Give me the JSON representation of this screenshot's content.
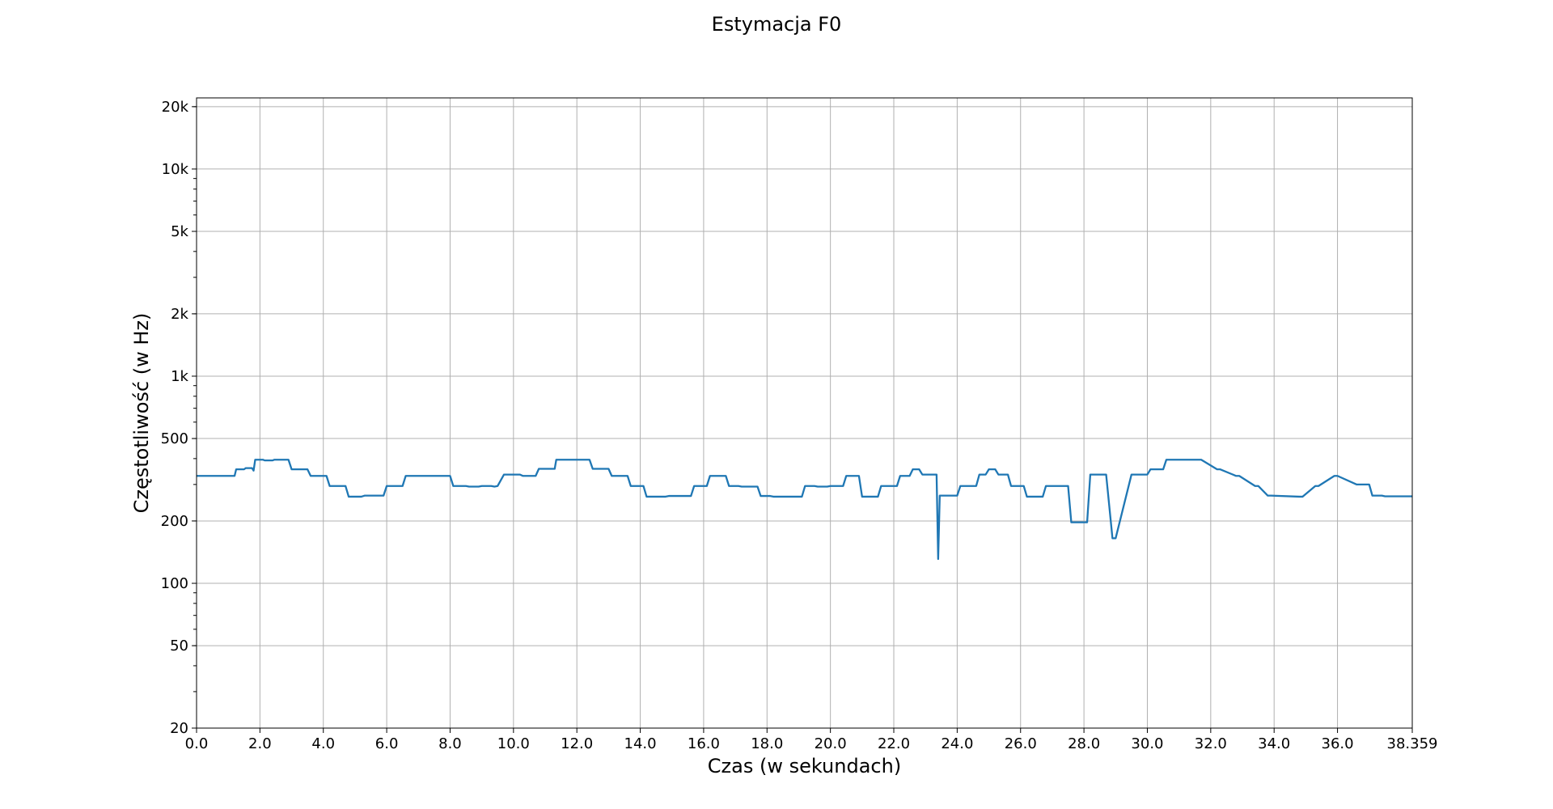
{
  "chart_data": {
    "type": "line",
    "title": "Estymacja F0",
    "xlabel": "Czas (w sekundach)",
    "ylabel": "Częstotliwość (w Hz)",
    "xlim": [
      0,
      38.359
    ],
    "ylim": [
      20,
      22050
    ],
    "yscale": "log",
    "grid": true,
    "line_color": "#1f77b4",
    "xticks": [
      "0.0",
      "2.0",
      "4.0",
      "6.0",
      "8.0",
      "10.0",
      "12.0",
      "14.0",
      "16.0",
      "18.0",
      "20.0",
      "22.0",
      "24.0",
      "26.0",
      "28.0",
      "30.0",
      "32.0",
      "34.0",
      "36.0",
      "38.359"
    ],
    "xtick_values": [
      0,
      2,
      4,
      6,
      8,
      10,
      12,
      14,
      16,
      18,
      20,
      22,
      24,
      26,
      28,
      30,
      32,
      34,
      36,
      38.359
    ],
    "yticks": [
      "20",
      "50",
      "100",
      "200",
      "500",
      "1k",
      "2k",
      "5k",
      "10k",
      "20k"
    ],
    "ytick_values": [
      20,
      50,
      100,
      200,
      500,
      1000,
      2000,
      5000,
      10000,
      20000
    ],
    "series": [
      {
        "x": [
          0.0,
          0.7,
          0.75,
          1.2,
          1.25,
          1.5,
          1.55,
          1.75,
          1.8,
          1.85,
          2.1,
          2.15,
          2.4,
          2.45,
          2.9,
          3.0,
          3.5,
          3.6,
          4.1,
          4.2,
          4.7,
          4.8,
          5.2,
          5.3,
          5.9,
          6.0,
          6.5,
          6.6,
          7.1,
          7.2,
          8.0,
          8.1,
          8.5,
          8.6,
          8.9,
          9.0,
          9.3,
          9.4,
          9.5,
          9.7,
          10.2,
          10.3,
          10.7,
          10.8,
          11.3,
          11.35,
          11.4,
          11.8,
          12.4,
          12.5,
          13.0,
          13.1,
          13.6,
          13.7,
          14.1,
          14.2,
          14.8,
          14.9,
          15.6,
          15.7,
          16.1,
          16.2,
          16.7,
          16.8,
          17.1,
          17.2,
          17.7,
          17.8,
          18.1,
          18.2,
          19.1,
          19.2,
          19.5,
          19.6,
          19.9,
          20.0,
          20.4,
          20.5,
          20.9,
          21.0,
          21.5,
          21.6,
          22.1,
          22.2,
          22.5,
          22.6,
          22.8,
          22.9,
          23.35,
          23.4,
          23.45,
          24.0,
          24.1,
          24.6,
          24.7,
          24.9,
          25.0,
          25.2,
          25.3,
          25.6,
          25.7,
          26.1,
          26.2,
          26.7,
          26.8,
          27.5,
          27.6,
          28.1,
          28.2,
          28.6,
          28.7,
          28.9,
          29.0,
          29.5,
          29.6,
          30.0,
          30.1,
          30.5,
          30.6,
          31.6,
          31.7,
          32.2,
          32.3,
          32.8,
          32.9,
          33.4,
          33.5,
          33.8,
          33.9,
          34.8,
          34.9,
          35.3,
          35.4,
          35.9,
          36.0,
          36.6,
          36.7,
          37.0,
          37.1,
          37.4,
          37.5,
          38.359
        ],
        "y": [
          330,
          330,
          330,
          330,
          355,
          355,
          360,
          360,
          350,
          395,
          395,
          392,
          392,
          395,
          395,
          355,
          355,
          330,
          330,
          295,
          295,
          262,
          262,
          265,
          265,
          295,
          295,
          330,
          330,
          330,
          330,
          295,
          295,
          293,
          293,
          295,
          295,
          293,
          295,
          335,
          335,
          330,
          330,
          357,
          357,
          395,
          395,
          395,
          395,
          357,
          357,
          330,
          330,
          295,
          295,
          262,
          262,
          264,
          264,
          295,
          295,
          330,
          330,
          295,
          295,
          293,
          293,
          264,
          264,
          262,
          262,
          295,
          295,
          293,
          293,
          295,
          295,
          330,
          330,
          262,
          262,
          295,
          295,
          330,
          330,
          355,
          355,
          335,
          335,
          131,
          265,
          265,
          295,
          295,
          335,
          335,
          355,
          355,
          335,
          335,
          295,
          295,
          262,
          262,
          295,
          295,
          197,
          197,
          335,
          335,
          335,
          165,
          165,
          335,
          335,
          335,
          355,
          355,
          395,
          395,
          395,
          355,
          355,
          330,
          330,
          295,
          295,
          265,
          265,
          262,
          262,
          295,
          295,
          330,
          330,
          300,
          300,
          300,
          265,
          265,
          263,
          263
        ]
      }
    ]
  }
}
